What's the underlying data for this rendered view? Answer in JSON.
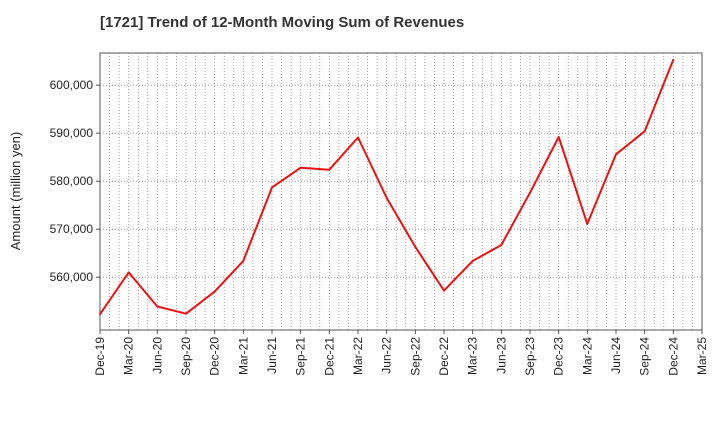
{
  "chart_data": {
    "type": "line",
    "title": "[1721]  Trend of 12-Month Moving Sum of Revenues",
    "xlabel": "",
    "ylabel": "Amount (million yen)",
    "x": [
      "Dec-19",
      "Mar-20",
      "Jun-20",
      "Sep-20",
      "Dec-20",
      "Mar-21",
      "Jun-21",
      "Sep-21",
      "Dec-21",
      "Mar-22",
      "Jun-22",
      "Sep-22",
      "Dec-22",
      "Mar-23",
      "Jun-23",
      "Sep-23",
      "Dec-23",
      "Mar-24",
      "Jun-24",
      "Sep-24",
      "Dec-24",
      "Mar-25"
    ],
    "series": [
      {
        "color": "#ee1111",
        "values": [
          552300,
          561000,
          553900,
          552400,
          557000,
          563400,
          578700,
          582800,
          582400,
          589100,
          576500,
          566300,
          557200,
          563400,
          566700,
          577600,
          589200,
          571100,
          585600,
          590400,
          605300,
          null
        ]
      }
    ],
    "ylim": [
      549000,
      606700
    ],
    "yticks": [
      560000,
      570000,
      580000,
      590000,
      600000
    ],
    "ytick_labels": [
      "560,000",
      "570,000",
      "580,000",
      "590,000",
      "600,000"
    ],
    "grid": true,
    "minor_x_grid_per_interval": 2
  }
}
